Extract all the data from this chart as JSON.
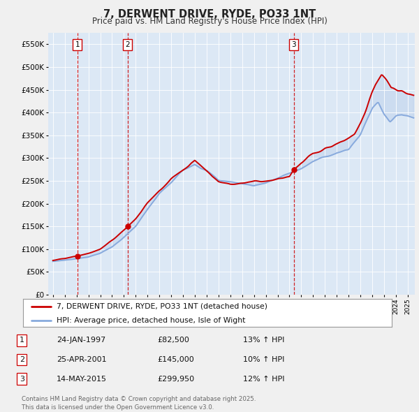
{
  "title": "7, DERWENT DRIVE, RYDE, PO33 1NT",
  "subtitle": "Price paid vs. HM Land Registry's House Price Index (HPI)",
  "background_color": "#f0f0f0",
  "plot_bg_color": "#dce8f5",
  "ylabel_ticks": [
    "£0",
    "£50K",
    "£100K",
    "£150K",
    "£200K",
    "£250K",
    "£300K",
    "£350K",
    "£400K",
    "£450K",
    "£500K",
    "£550K"
  ],
  "ytick_values": [
    0,
    50000,
    100000,
    150000,
    200000,
    250000,
    300000,
    350000,
    400000,
    450000,
    500000,
    550000
  ],
  "ylim": [
    0,
    575000
  ],
  "legend_line1": "7, DERWENT DRIVE, RYDE, PO33 1NT (detached house)",
  "legend_line2": "HPI: Average price, detached house, Isle of Wight",
  "sale1_label": "1",
  "sale1_date": "24-JAN-1997",
  "sale1_price": "£82,500",
  "sale1_hpi": "13% ↑ HPI",
  "sale1_x": 1997.07,
  "sale1_y": 82500,
  "sale2_label": "2",
  "sale2_date": "25-APR-2001",
  "sale2_price": "£145,000",
  "sale2_hpi": "10% ↑ HPI",
  "sale2_x": 2001.32,
  "sale2_y": 145000,
  "sale3_label": "3",
  "sale3_date": "14-MAY-2015",
  "sale3_price": "£299,950",
  "sale3_hpi": "12% ↑ HPI",
  "sale3_x": 2015.37,
  "sale3_y": 299950,
  "copyright_text": "Contains HM Land Registry data © Crown copyright and database right 2025.\nThis data is licensed under the Open Government Licence v3.0.",
  "line_color_red": "#cc0000",
  "line_color_blue": "#88aadd",
  "xlim_start": 1994.6,
  "xlim_end": 2025.6
}
